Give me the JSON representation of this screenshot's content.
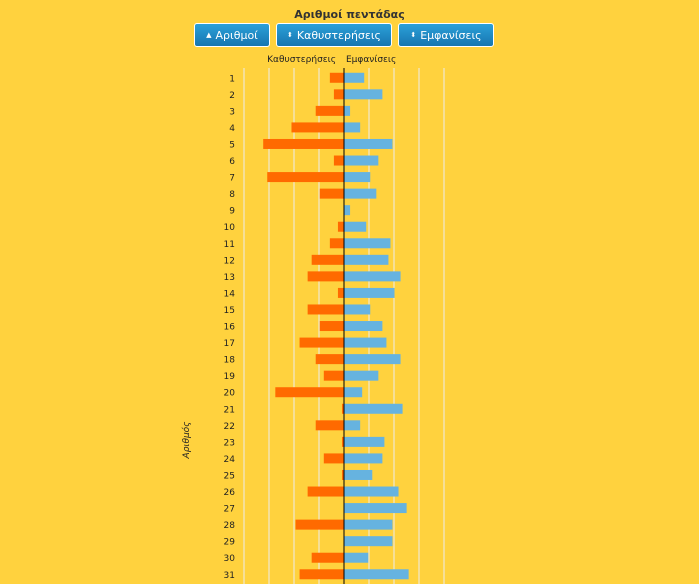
{
  "title": "Αριθμοί πεντάδας",
  "sort_buttons": [
    {
      "label": "Αριθμοί",
      "icon": "sort-up-icon"
    },
    {
      "label": "Καθυστερήσεις",
      "icon": "sort-both-icon"
    },
    {
      "label": "Εμφανίσεις",
      "icon": "sort-both-icon"
    }
  ],
  "colors": {
    "delays": "#ff6a00",
    "appearances": "#66b3e0",
    "grid": "#ececec",
    "axis": "#000000"
  },
  "chart_data": {
    "type": "bar",
    "orientation": "horizontal",
    "ylabel": "Αριθμός",
    "grid": true,
    "categories": [
      "1",
      "2",
      "3",
      "4",
      "5",
      "6",
      "7",
      "8",
      "9",
      "10",
      "11",
      "12",
      "13",
      "14",
      "15",
      "16",
      "17",
      "18",
      "19",
      "20",
      "21",
      "22",
      "23",
      "24",
      "25",
      "26",
      "27",
      "28",
      "29",
      "30",
      "31"
    ],
    "series": [
      {
        "name": "Καθυστερήσεις",
        "side": "left",
        "values": [
          7,
          5,
          14,
          26,
          40,
          5,
          38,
          12,
          0,
          3,
          7,
          16,
          18,
          3,
          18,
          12,
          22,
          14,
          10,
          34,
          1,
          14,
          1,
          10,
          1,
          18,
          0,
          24,
          0,
          16,
          22
        ]
      },
      {
        "name": "Εμφανίσεις",
        "side": "right",
        "values": [
          10,
          19,
          3,
          8,
          24,
          17,
          13,
          16,
          3,
          11,
          23,
          22,
          28,
          25,
          13,
          19,
          21,
          28,
          17,
          9,
          29,
          8,
          20,
          19,
          14,
          27,
          31,
          24,
          24,
          12,
          32
        ]
      }
    ]
  }
}
